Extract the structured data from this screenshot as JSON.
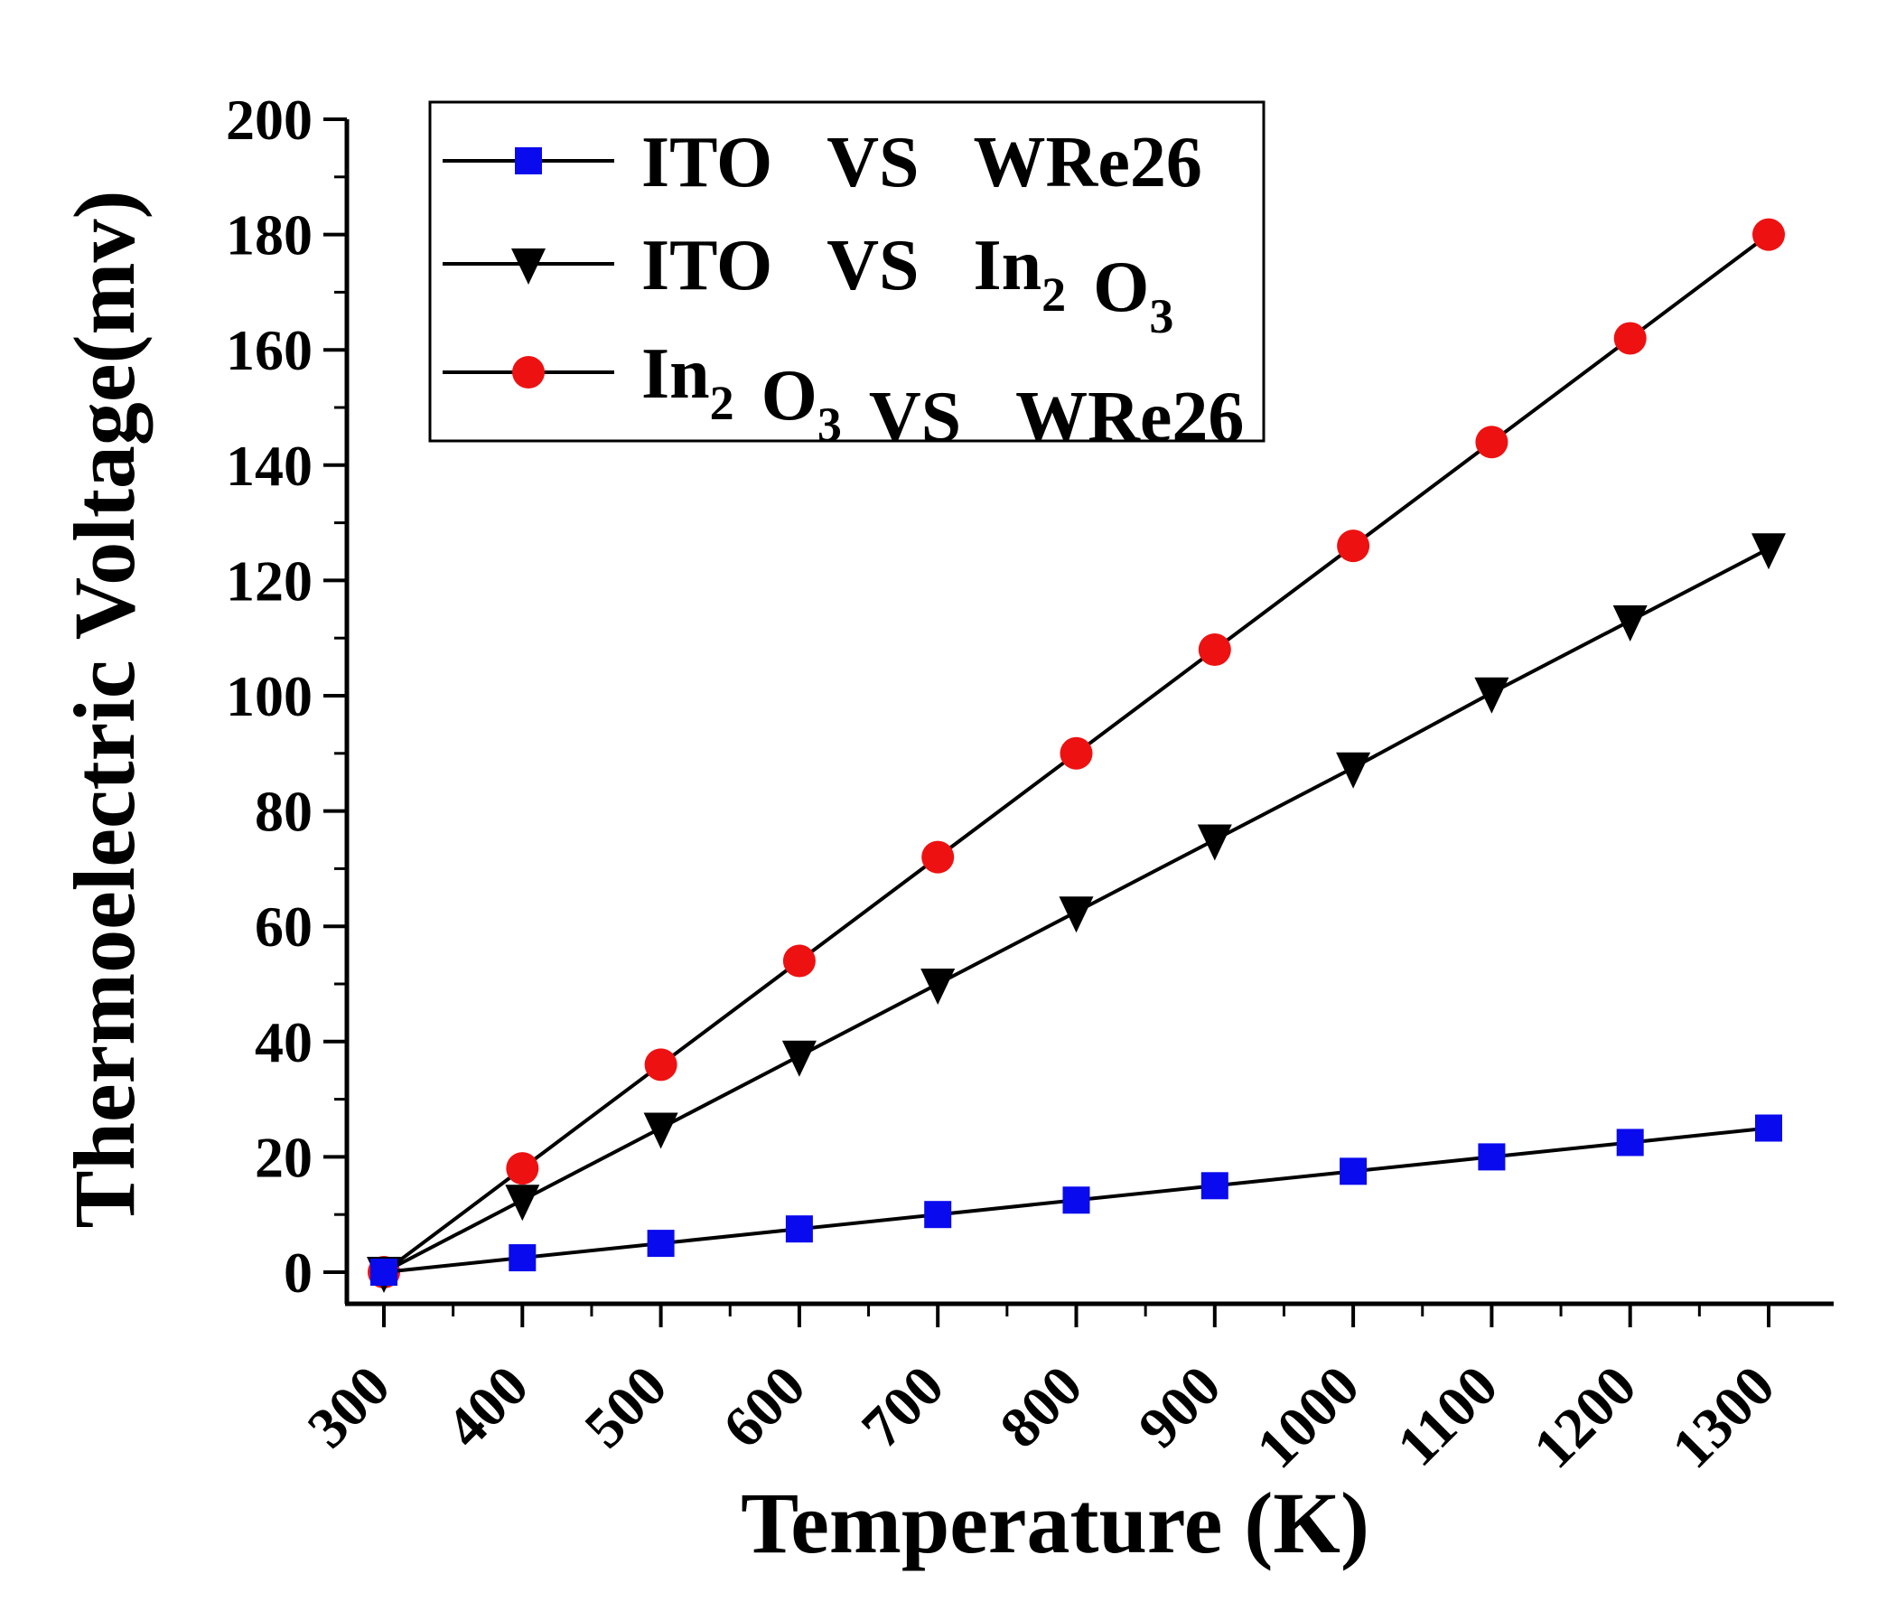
{
  "chart_data": {
    "type": "line",
    "title": "",
    "xlabel": "Temperature (K)",
    "ylabel": "Thermoelectric Voltage(mv)",
    "x": [
      300,
      400,
      500,
      600,
      700,
      800,
      900,
      1000,
      1100,
      1200,
      1300
    ],
    "xlim": [
      270,
      1350
    ],
    "ylim": [
      -5,
      200
    ],
    "x_ticks": [
      "300",
      "400",
      "500",
      "600",
      "700",
      "800",
      "900",
      "1000",
      "1100",
      "1200",
      "1300"
    ],
    "y_ticks": [
      "0",
      "20",
      "40",
      "60",
      "80",
      "100",
      "120",
      "140",
      "160",
      "180",
      "200"
    ],
    "grid": false,
    "legend_position": "top-left",
    "series": [
      {
        "name": "ITO VS WRe26",
        "legend_parts": [
          [
            "ITO",
            ""
          ],
          [
            "VS",
            ""
          ],
          [
            "WRe26",
            ""
          ]
        ],
        "marker": "square",
        "color": "#0a0aee",
        "values": [
          0,
          2.5,
          5,
          7.5,
          10,
          12.5,
          15,
          17.5,
          20,
          22.5,
          25
        ]
      },
      {
        "name": "ITO VS In2O3",
        "legend_parts": [
          [
            "ITO",
            ""
          ],
          [
            "VS",
            ""
          ],
          [
            "In",
            "2"
          ],
          [
            "O",
            "3"
          ]
        ],
        "marker": "triangle-down",
        "color": "#000000",
        "values": [
          0,
          12.5,
          25,
          37.5,
          50,
          62.5,
          75,
          87.5,
          100.5,
          113,
          125.5
        ]
      },
      {
        "name": "In2O3 VS WRe26",
        "legend_parts": [
          [
            "In",
            "2"
          ],
          [
            "O",
            "3"
          ],
          [
            "VS",
            ""
          ],
          [
            "WRe26",
            ""
          ]
        ],
        "marker": "circle",
        "color": "#ee1111",
        "values": [
          0,
          18,
          36,
          54,
          72,
          90,
          108,
          126,
          144,
          162,
          180
        ]
      }
    ]
  }
}
